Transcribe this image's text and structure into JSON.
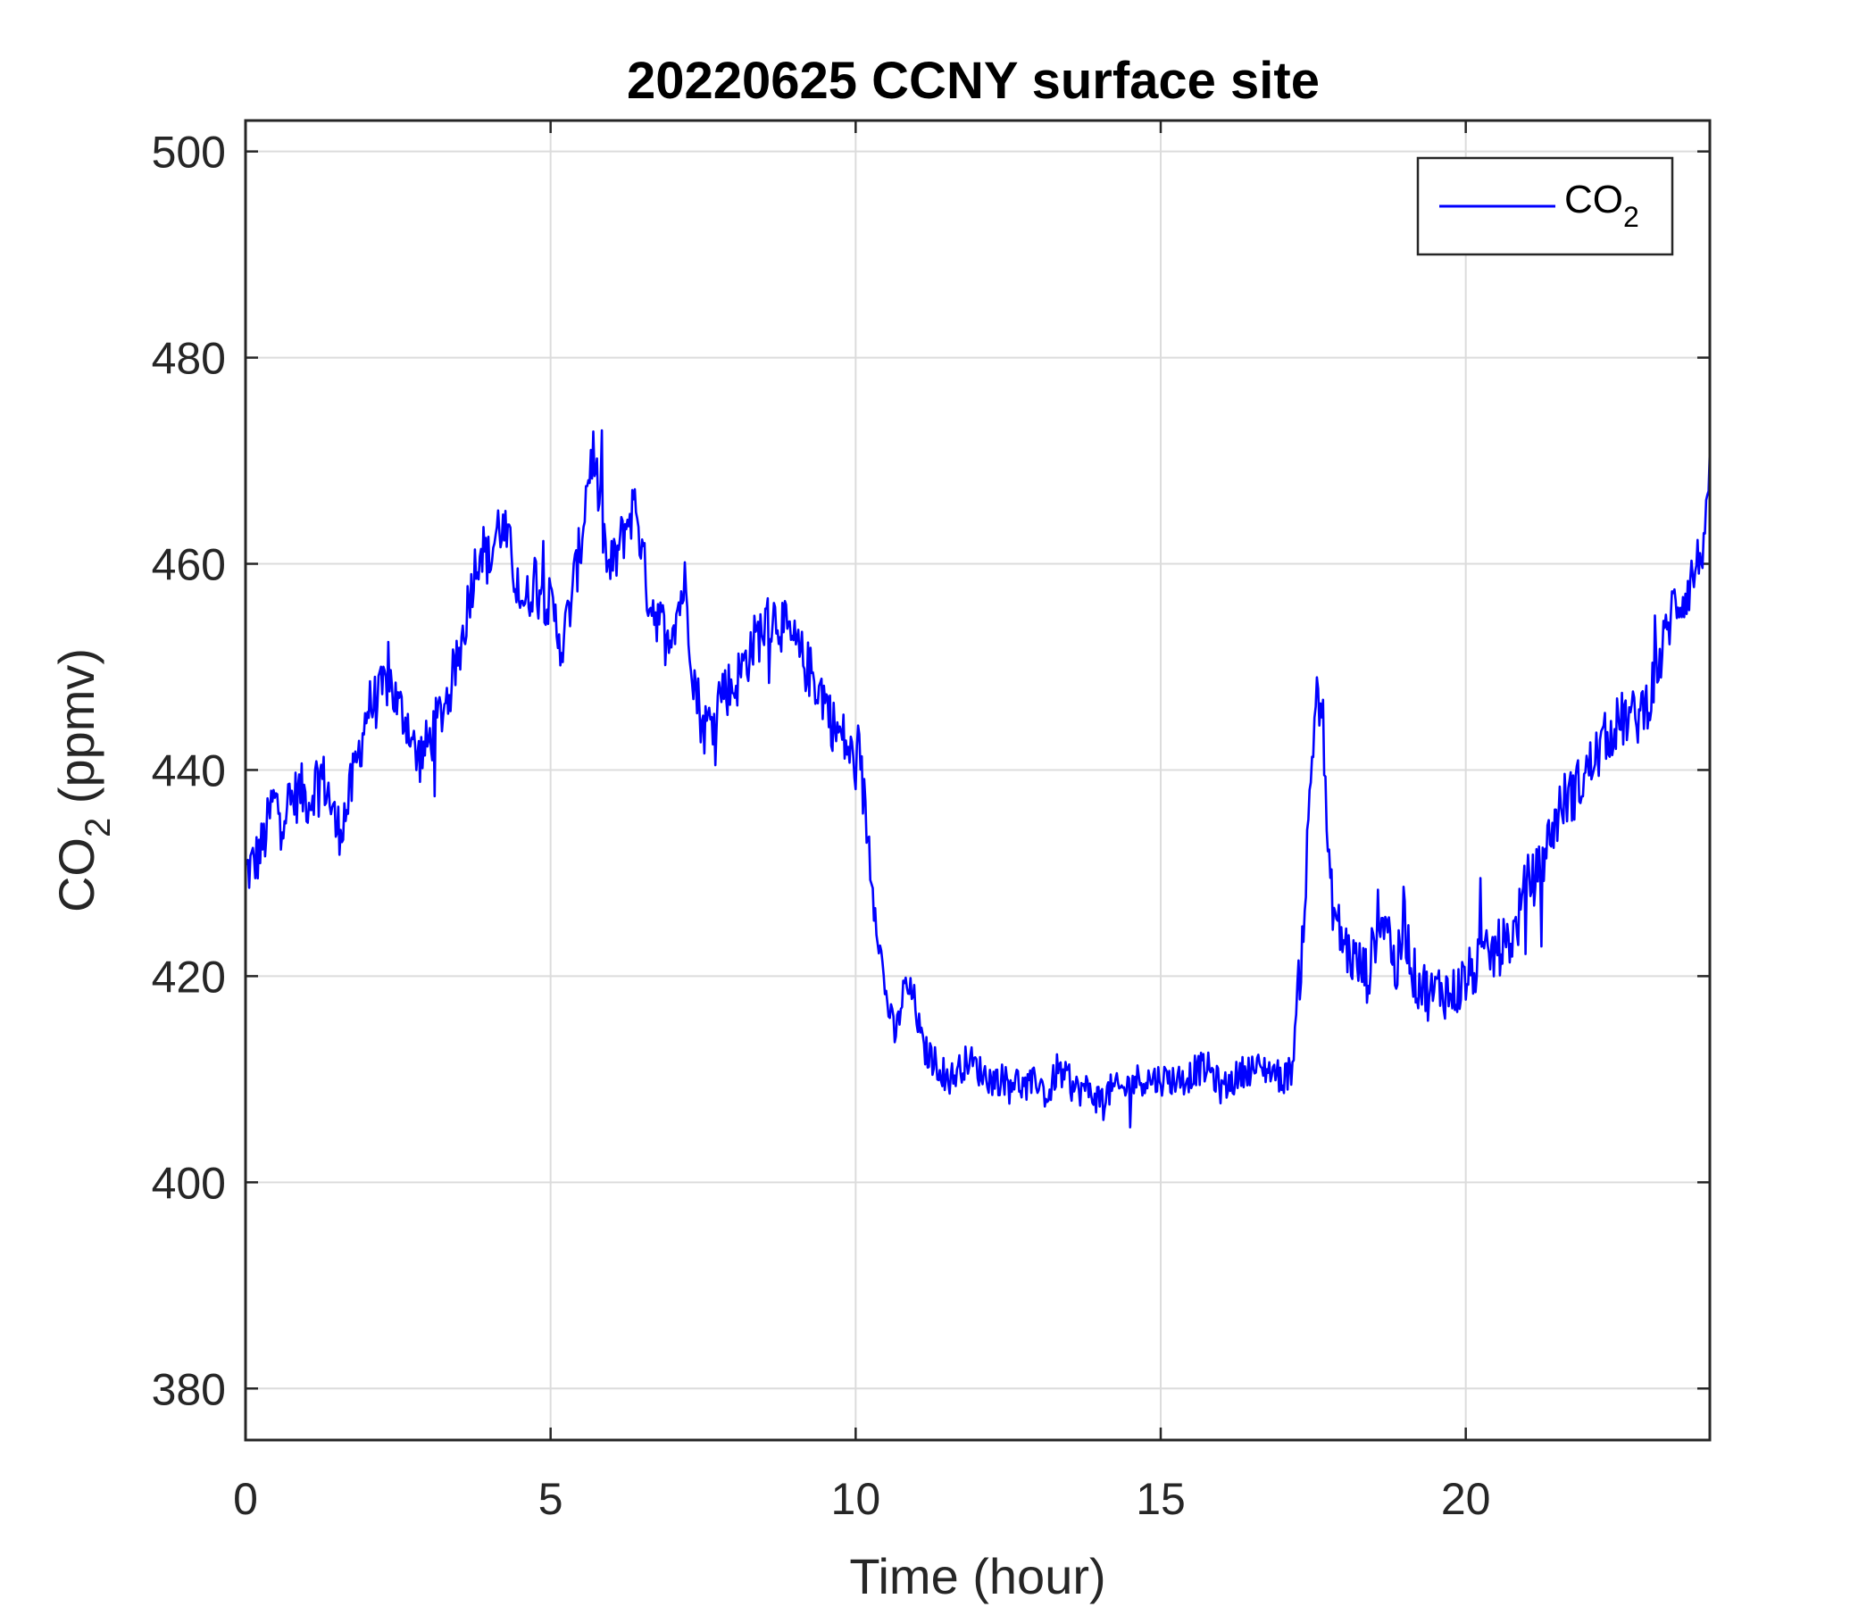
{
  "chart_data": {
    "type": "line",
    "title": "20220625 CCNY surface site",
    "xlabel": "Time (hour)",
    "ylabel": {
      "base": "CO",
      "subscript": "2",
      "suffix": " (ppmv)"
    },
    "xlim": [
      0,
      24
    ],
    "ylim": [
      375,
      503
    ],
    "xticks": [
      0,
      5,
      10,
      15,
      20
    ],
    "yticks": [
      380,
      400,
      420,
      440,
      460,
      480,
      500
    ],
    "grid": true,
    "legend_position": "top-right",
    "series": [
      {
        "name": {
          "base": "CO",
          "subscript": "2"
        },
        "color": "#0000ff",
        "x": [
          0,
          0.15,
          0.3,
          0.45,
          0.6,
          0.75,
          0.9,
          1.05,
          1.2,
          1.35,
          1.5,
          1.65,
          1.8,
          2.0,
          2.2,
          2.35,
          2.5,
          2.65,
          2.8,
          2.95,
          3.1,
          3.3,
          3.5,
          3.7,
          3.85,
          4.0,
          4.15,
          4.3,
          4.45,
          4.6,
          4.75,
          4.9,
          5.05,
          5.2,
          5.35,
          5.5,
          5.6,
          5.7,
          5.8,
          5.95,
          6.1,
          6.25,
          6.4,
          6.5,
          6.6,
          6.75,
          6.9,
          7.05,
          7.2,
          7.35,
          7.5,
          7.65,
          7.8,
          8.0,
          8.15,
          8.3,
          8.5,
          8.7,
          8.9,
          9.1,
          9.3,
          9.5,
          9.65,
          9.8,
          9.95,
          10.1,
          10.25,
          10.35,
          10.5,
          10.65,
          10.8,
          10.95,
          11.1,
          11.25,
          11.4,
          11.55,
          11.7,
          11.85,
          12.0,
          12.2,
          12.4,
          12.6,
          12.8,
          13.0,
          13.15,
          13.3,
          13.45,
          13.6,
          13.8,
          14.0,
          14.2,
          14.4,
          14.6,
          14.8,
          15.0,
          15.2,
          15.4,
          15.6,
          15.8,
          16.0,
          16.2,
          16.4,
          16.6,
          16.8,
          17.0,
          17.15,
          17.25,
          17.35,
          17.45,
          17.55,
          17.65,
          17.75,
          17.85,
          17.95,
          18.1,
          18.25,
          18.4,
          18.55,
          18.7,
          18.85,
          19.0,
          19.15,
          19.3,
          19.45,
          19.6,
          19.75,
          19.9,
          20.05,
          20.2,
          20.4,
          20.6,
          20.8,
          21.0,
          21.2,
          21.4,
          21.6,
          21.8,
          22.0,
          22.2,
          22.4,
          22.6,
          22.8,
          23.0,
          23.2,
          23.4,
          23.6,
          23.8,
          24.0
        ],
        "y": [
          430,
          431,
          433,
          437,
          436,
          437,
          438,
          437,
          440,
          438,
          434,
          436,
          440,
          446,
          447,
          449,
          446,
          445,
          441,
          442,
          444,
          447,
          451,
          458,
          462,
          460,
          464,
          462,
          458,
          456,
          459,
          457,
          455,
          452,
          457,
          462,
          468,
          471,
          466,
          459,
          461,
          464,
          466,
          461,
          457,
          455,
          453,
          455,
          458,
          449,
          444,
          445,
          448,
          448,
          450,
          452,
          454,
          455,
          453,
          451,
          449,
          447,
          444,
          443,
          441,
          439,
          431,
          425,
          418,
          414,
          419,
          418,
          413,
          412,
          411,
          410,
          411,
          412,
          411,
          410,
          410,
          410,
          409,
          410,
          408,
          411,
          410,
          409,
          409,
          408,
          409,
          409,
          410,
          410,
          410,
          410,
          410,
          411,
          411,
          409,
          410,
          411,
          411,
          411,
          410,
          411,
          418,
          426,
          438,
          448,
          446,
          430,
          426,
          424,
          422,
          421,
          420,
          425,
          426,
          420,
          425,
          420,
          419,
          418,
          419,
          418,
          419,
          420,
          421,
          422,
          423,
          424,
          429,
          430,
          434,
          437,
          438,
          440,
          442,
          444,
          445,
          445,
          447,
          451,
          456,
          457,
          460,
          465
        ]
      }
    ]
  }
}
